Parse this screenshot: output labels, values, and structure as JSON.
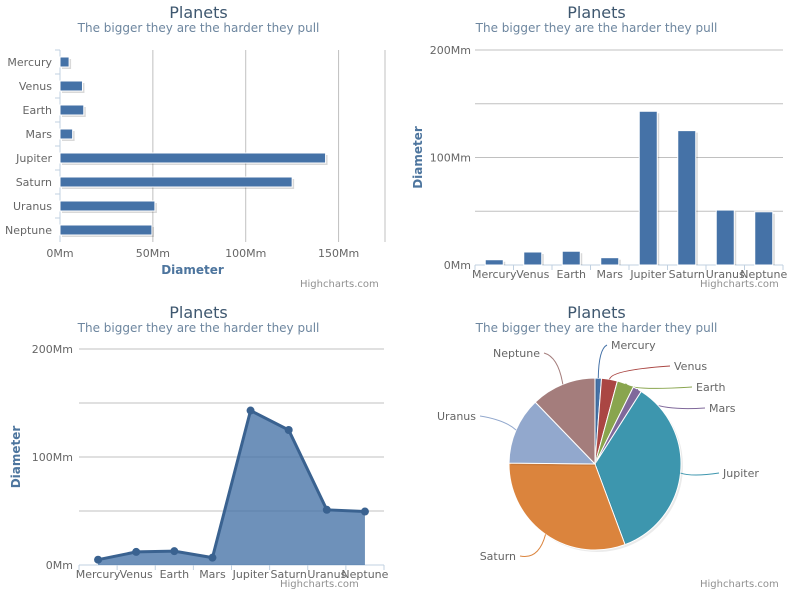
{
  "credits": "Highcharts.com",
  "chart_data": [
    {
      "type": "bar",
      "title": "Planets",
      "subtitle": "The bigger they are the harder they pull",
      "categories": [
        "Mercury",
        "Venus",
        "Earth",
        "Mars",
        "Jupiter",
        "Saturn",
        "Uranus",
        "Neptune"
      ],
      "values": [
        4.9,
        12.1,
        12.8,
        6.8,
        143,
        125,
        51.1,
        49.5
      ],
      "ylabel": "Diameter",
      "ylim": [
        0,
        175
      ],
      "yticks": [
        "0Mm",
        "50Mm",
        "100Mm",
        "150Mm"
      ],
      "color": "#4572a7",
      "grid": true,
      "orientation": "horizontal"
    },
    {
      "type": "bar",
      "title": "Planets",
      "subtitle": "The bigger they are the harder they pull",
      "categories": [
        "Mercury",
        "Venus",
        "Earth",
        "Mars",
        "Jupiter",
        "Saturn",
        "Uranus",
        "Neptune"
      ],
      "values": [
        4.9,
        12.1,
        12.8,
        6.8,
        143,
        125,
        51.1,
        49.5
      ],
      "ylabel": "Diameter",
      "ylim": [
        0,
        200
      ],
      "yticks": [
        "0Mm",
        "100Mm",
        "200Mm"
      ],
      "color": "#4572a7",
      "grid": true,
      "orientation": "vertical"
    },
    {
      "type": "area",
      "title": "Planets",
      "subtitle": "The bigger they are the harder they pull",
      "categories": [
        "Mercury",
        "Venus",
        "Earth",
        "Mars",
        "Jupiter",
        "Saturn",
        "Uranus",
        "Neptune"
      ],
      "values": [
        4.9,
        12.1,
        12.8,
        6.8,
        143,
        125,
        51.1,
        49.5
      ],
      "ylabel": "Diameter",
      "ylim": [
        0,
        200
      ],
      "yticks": [
        "0Mm",
        "100Mm",
        "200Mm"
      ],
      "color": "#4572a7",
      "grid": true
    },
    {
      "type": "pie",
      "title": "Planets",
      "subtitle": "The bigger they are the harder they pull",
      "categories": [
        "Mercury",
        "Venus",
        "Earth",
        "Mars",
        "Jupiter",
        "Saturn",
        "Uranus",
        "Neptune"
      ],
      "values": [
        4.9,
        12.1,
        12.8,
        6.8,
        143,
        125,
        51.1,
        49.5
      ],
      "colors": [
        "#4572a7",
        "#aa4643",
        "#89a54e",
        "#80699b",
        "#3d96ae",
        "#db843d",
        "#92a8cd",
        "#a47d7c"
      ]
    }
  ]
}
